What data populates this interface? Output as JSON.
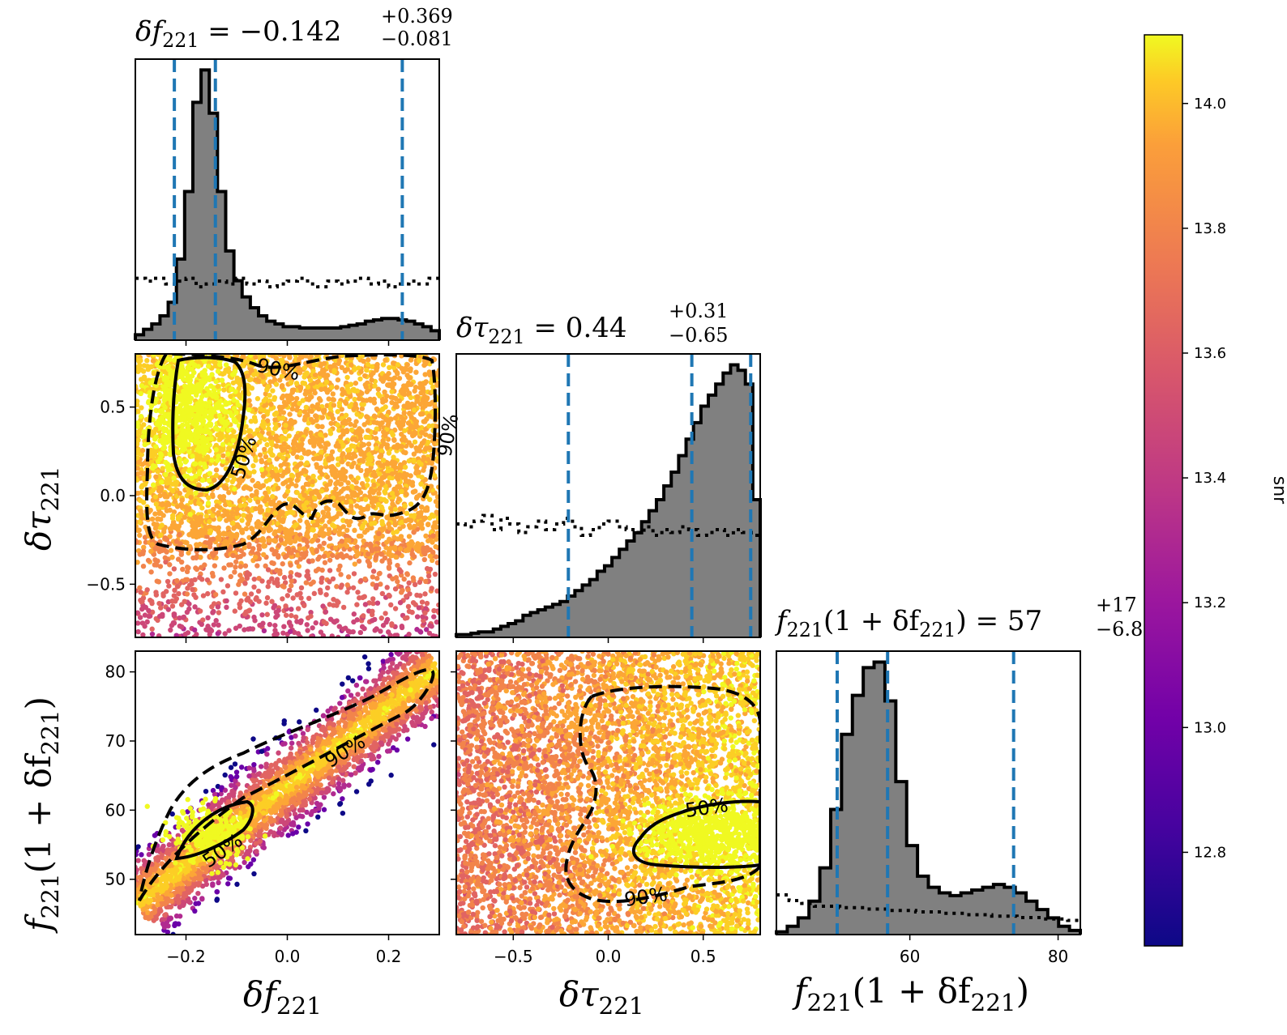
{
  "colormap": {
    "name": "plasma",
    "label": "snr",
    "range": [
      12.65,
      14.11
    ],
    "ticks": [
      "12.8",
      "13.0",
      "13.2",
      "13.4",
      "13.6",
      "13.8",
      "14.0"
    ]
  },
  "colors": {
    "quantile_lines": "#1f77b4",
    "histogram_fill": "#808080",
    "contour": "#000000"
  },
  "titles": {
    "p0": {
      "lhs": "δf",
      "sub": "221",
      "eq": " = −0.142",
      "up": "+0.369",
      "dn": "−0.081"
    },
    "p1": {
      "lhs": "δτ",
      "sub": "221",
      "eq": " = 0.44",
      "up": "+0.31",
      "dn": "−0.65"
    },
    "p2": {
      "lhs1": "f",
      "sub1": "221",
      "mid": "(1 + δf",
      "sub2": "221",
      "end": ") = 57",
      "up": "+17",
      "dn": "−6.8"
    }
  },
  "axis_labels": {
    "x0": {
      "pre": "δf",
      "sub": "221"
    },
    "x1": {
      "pre": "δτ",
      "sub": "221"
    },
    "x2": {
      "a": "f",
      "sa": "221",
      "b": "(1 + δf",
      "sb": "221",
      "c": ")"
    },
    "y1": {
      "pre": "δτ",
      "sub": "221"
    },
    "y2": {
      "a": "f",
      "sa": "221",
      "b": "(1 + δf",
      "sb": "221",
      "c": ")"
    }
  },
  "chart_data": {
    "type": "corner",
    "parameters": [
      "δf_221",
      "δτ_221",
      "f_221(1 + δf_221)"
    ],
    "ranges": [
      [
        -0.3,
        0.3
      ],
      [
        -0.8,
        0.8
      ],
      [
        42,
        83
      ]
    ],
    "ticks": {
      "x0": [
        "−0.2",
        "0.0",
        "0.2"
      ],
      "x1": [
        "−0.5",
        "0.0",
        "0.5"
      ],
      "x2": [
        "60",
        "80"
      ],
      "y1": [
        "0.5",
        "0.0",
        "−0.5"
      ],
      "y2": [
        "80",
        "70",
        "60",
        "50"
      ]
    },
    "quantiles": [
      [
        -0.223,
        -0.142,
        0.227
      ],
      [
        -0.21,
        0.44,
        0.75
      ],
      [
        50.2,
        57,
        74
      ]
    ],
    "medians": [
      -0.142,
      0.44,
      57
    ],
    "errors": [
      [
        0.369,
        0.081
      ],
      [
        0.31,
        0.65
      ],
      [
        17,
        6.8
      ]
    ],
    "contour_labels": [
      "50%",
      "90%"
    ],
    "hist_dfx": [
      2,
      4,
      6,
      9,
      14,
      30,
      55,
      88,
      100,
      84,
      55,
      33,
      22,
      16,
      12,
      9,
      7,
      6,
      5,
      5,
      4.5,
      4.5,
      4.5,
      4.5,
      4.5,
      5,
      5.5,
      6,
      7,
      7.5,
      8,
      8,
      7.5,
      7,
      6,
      5,
      3.5
    ],
    "hist_dtau": [
      1,
      1,
      1.5,
      2,
      2,
      3,
      4,
      5,
      6,
      8,
      9,
      10,
      11,
      12,
      13,
      15,
      17,
      19,
      21,
      24,
      26,
      29,
      32,
      35,
      38,
      42,
      46,
      50,
      55,
      60,
      66,
      72,
      78,
      84,
      88,
      92,
      96,
      99,
      97,
      92,
      50
    ],
    "hist_f": [
      1,
      3,
      6,
      12,
      24,
      45,
      72,
      86,
      96,
      98,
      84,
      55,
      32,
      21,
      17,
      15,
      14,
      15,
      16,
      17,
      18,
      17,
      15,
      12,
      9,
      6,
      3,
      1.5
    ],
    "prior_dfx": [
      22,
      21,
      22,
      20,
      21,
      22,
      19,
      20,
      21,
      20,
      22,
      20,
      21,
      19,
      20,
      21,
      22,
      20,
      19,
      21,
      20,
      21,
      22,
      20,
      21,
      19,
      20,
      21,
      20,
      22
    ],
    "prior_dtau": [
      40,
      39,
      41,
      43,
      38,
      42,
      40,
      37,
      39,
      41,
      38,
      40,
      42,
      39,
      36,
      38,
      40,
      41,
      39,
      38,
      37,
      39,
      36,
      38,
      37,
      39,
      38,
      36,
      37,
      38,
      36,
      38,
      37,
      36
    ],
    "prior_f": [
      14,
      12,
      11,
      10,
      10,
      9.5,
      9.5,
      9,
      9,
      8.5,
      8.5,
      8,
      8,
      7.5,
      7.5,
      7,
      7,
      6.5,
      6.5,
      6,
      6,
      5.5,
      5.5,
      5
    ]
  }
}
